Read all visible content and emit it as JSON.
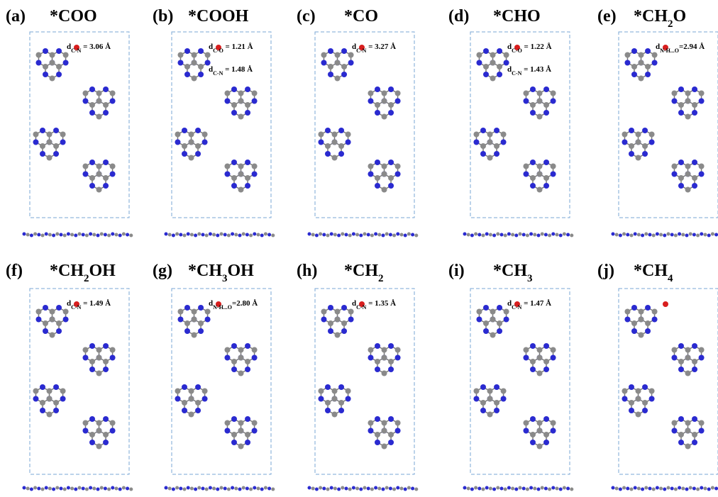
{
  "panels": [
    {
      "label": "(a)",
      "title": [
        "*COO"
      ],
      "notes": [
        {
          "d": "d",
          "sub": "C-N",
          "text": " = 3.06 Å"
        }
      ]
    },
    {
      "label": "(b)",
      "title": [
        "*COOH"
      ],
      "notes": [
        {
          "d": "d",
          "sub": "C-O",
          "text": " = 1.21 Å"
        },
        {
          "d": "d",
          "sub": "C-N",
          "text": " = 1.48 Å"
        }
      ]
    },
    {
      "label": "(c)",
      "title": [
        "*CO"
      ],
      "notes": [
        {
          "d": "d",
          "sub": "C-N",
          "text": " = 3.27 Å"
        }
      ]
    },
    {
      "label": "(d)",
      "title": [
        "*CHO"
      ],
      "notes": [
        {
          "d": "d",
          "sub": "C-O",
          "text": " = 1.22 Å"
        },
        {
          "d": "d",
          "sub": "C-N",
          "text": " = 1.43 Å"
        }
      ]
    },
    {
      "label": "(e)",
      "title": [
        "*CH",
        "2",
        "O"
      ],
      "notes": [
        {
          "d": "d",
          "sub": "N-H...O",
          "text": "=2.94 Å"
        }
      ]
    },
    {
      "label": "(f)",
      "title": [
        "*CH",
        "2",
        "OH"
      ],
      "notes": [
        {
          "d": "d",
          "sub": "C-N",
          "text": " = 1.49 Å"
        }
      ]
    },
    {
      "label": "(g)",
      "title": [
        "*CH",
        "3",
        "OH"
      ],
      "notes": [
        {
          "d": "d",
          "sub": "N-H...O",
          "text": "=2.80 Å"
        }
      ]
    },
    {
      "label": "(h)",
      "title": [
        "*CH",
        "2"
      ],
      "notes": [
        {
          "d": "d",
          "sub": "C-N",
          "text": " = 1.35 Å"
        }
      ]
    },
    {
      "label": "(i)",
      "title": [
        "*CH",
        "3"
      ],
      "notes": [
        {
          "d": "d",
          "sub": "C-N",
          "text": " = 1.47 Å"
        }
      ]
    },
    {
      "label": "(j)",
      "title": [
        "*CH",
        "4"
      ],
      "notes": []
    }
  ]
}
